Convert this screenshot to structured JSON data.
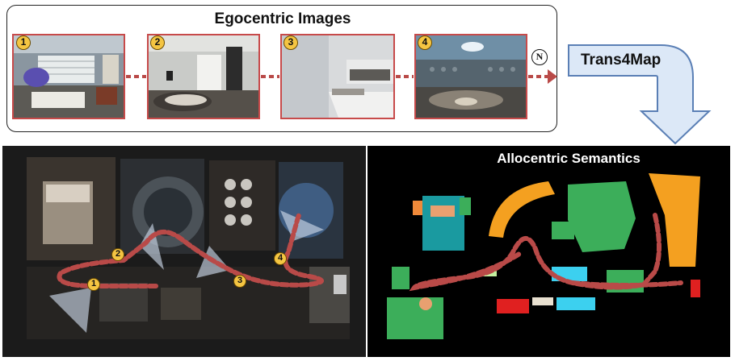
{
  "egocentric": {
    "title": "Egocentric Images",
    "frames": [
      {
        "label": "1"
      },
      {
        "label": "2"
      },
      {
        "label": "3"
      },
      {
        "label": "4"
      }
    ],
    "last_label": "N"
  },
  "model": {
    "label": "Trans4Map"
  },
  "allocentric": {
    "title": "Allocentric Semantics"
  },
  "floorplan": {
    "waypoints": [
      {
        "label": "1"
      },
      {
        "label": "2"
      },
      {
        "label": "3"
      },
      {
        "label": "4"
      }
    ]
  },
  "colors": {
    "frame_border": "#c74a4a",
    "trajectory": "#b94a48",
    "badge": "#f4c542",
    "arrow_fill": "#dce8f7",
    "arrow_stroke": "#5a7fb5"
  }
}
